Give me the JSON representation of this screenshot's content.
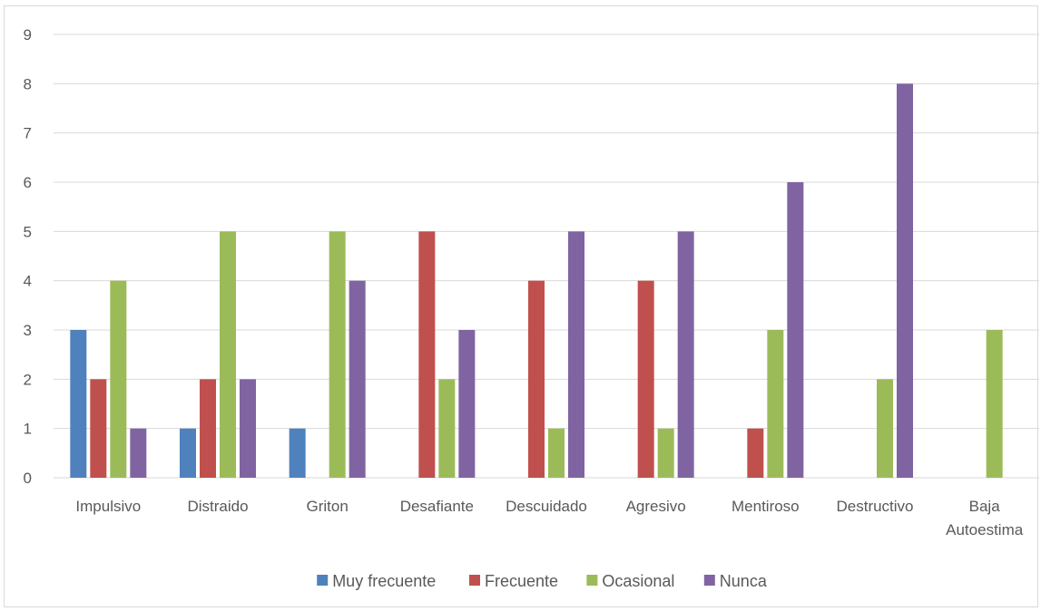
{
  "chart_data": {
    "type": "bar",
    "categories": [
      [
        "Impulsivo"
      ],
      [
        "Distraido"
      ],
      [
        "Griton"
      ],
      [
        "Desafiante"
      ],
      [
        "Descuidado"
      ],
      [
        "Agresivo"
      ],
      [
        "Mentiroso"
      ],
      [
        "Destructivo"
      ],
      [
        "Baja",
        "Autoestima"
      ]
    ],
    "series": [
      {
        "name": "Muy frecuente",
        "color": "#4f81bd",
        "values": [
          3,
          1,
          1,
          0,
          0,
          0,
          0,
          0,
          0
        ]
      },
      {
        "name": "Frecuente",
        "color": "#c0504d",
        "values": [
          2,
          2,
          0,
          5,
          4,
          4,
          1,
          0,
          0
        ]
      },
      {
        "name": "Ocasional",
        "color": "#9bbb59",
        "values": [
          4,
          5,
          5,
          2,
          1,
          1,
          3,
          2,
          3
        ]
      },
      {
        "name": "Nunca",
        "color": "#8064a2",
        "values": [
          1,
          2,
          4,
          3,
          5,
          5,
          6,
          8,
          0
        ]
      }
    ],
    "ylim": [
      0,
      9
    ],
    "yticks": [
      "0",
      "1",
      "2",
      "3",
      "4",
      "5",
      "6",
      "7",
      "8",
      "9"
    ],
    "grid": true,
    "legend_position": "bottom",
    "gridline_color": "#d9d9d9",
    "text_color": "#595959"
  }
}
